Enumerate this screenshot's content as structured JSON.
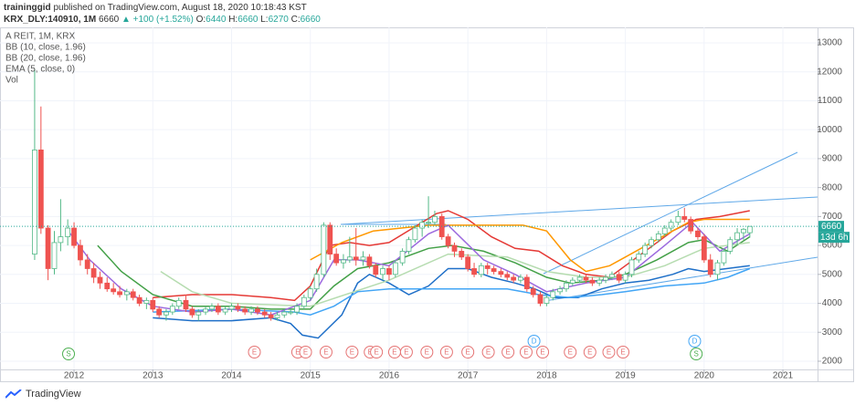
{
  "header": {
    "author": "traininggid",
    "published": "published on TradingView.com, August 18, 2020 10:18:43 KST",
    "symbol": "KRX_DLY:140910, 1M",
    "last": "6660",
    "change": "▲ +100 (+1.52%)",
    "quote": [
      {
        "key": "O:",
        "value": "6440"
      },
      {
        "key": "H:",
        "value": "6660"
      },
      {
        "key": "L:",
        "value": "6270"
      },
      {
        "key": "C:",
        "value": "6660"
      }
    ]
  },
  "footer": {
    "brand": "TradingView"
  },
  "chart_data": {
    "type": "candlestick",
    "title": "A REIT, 1M, KRX",
    "volume_label": "Vol",
    "up_color": "#53b987",
    "down_color": "#ef5350",
    "grid": true,
    "xlim": [
      2011.06,
      2021.44
    ],
    "xticks": [
      2012,
      2013,
      2014,
      2015,
      2016,
      2017,
      2018,
      2019,
      2020,
      2021
    ],
    "ylim": [
      1716,
      13536
    ],
    "yticks": [
      2000,
      3000,
      4000,
      5000,
      6000,
      7000,
      8000,
      9000,
      10000,
      11000,
      12000,
      13000
    ],
    "x": [
      2011.5,
      2011.58,
      2011.67,
      2011.75,
      2011.83,
      2011.92,
      2012,
      2012.08,
      2012.17,
      2012.25,
      2012.33,
      2012.42,
      2012.5,
      2012.58,
      2012.67,
      2012.75,
      2012.83,
      2012.92,
      2013,
      2013.08,
      2013.17,
      2013.25,
      2013.33,
      2013.42,
      2013.5,
      2013.58,
      2013.67,
      2013.75,
      2013.83,
      2013.92,
      2014,
      2014.08,
      2014.17,
      2014.25,
      2014.33,
      2014.42,
      2014.5,
      2014.58,
      2014.67,
      2014.75,
      2014.83,
      2014.92,
      2015,
      2015.08,
      2015.17,
      2015.25,
      2015.33,
      2015.42,
      2015.5,
      2015.58,
      2015.67,
      2015.75,
      2015.83,
      2015.92,
      2016,
      2016.08,
      2016.17,
      2016.25,
      2016.33,
      2016.42,
      2016.5,
      2016.58,
      2016.67,
      2016.75,
      2016.83,
      2016.92,
      2017,
      2017.08,
      2017.17,
      2017.25,
      2017.33,
      2017.42,
      2017.5,
      2017.58,
      2017.67,
      2017.75,
      2017.83,
      2017.92,
      2018,
      2018.08,
      2018.17,
      2018.25,
      2018.33,
      2018.42,
      2018.5,
      2018.58,
      2018.67,
      2018.75,
      2018.83,
      2018.92,
      2019,
      2019.08,
      2019.17,
      2019.25,
      2019.33,
      2019.42,
      2019.5,
      2019.58,
      2019.67,
      2019.75,
      2019.83,
      2019.92,
      2020,
      2020.08,
      2020.17,
      2020.25,
      2020.33,
      2020.42,
      2020.5,
      2020.58
    ],
    "ohlc": [
      [
        5700,
        12100,
        5500,
        9300
      ],
      [
        9300,
        10800,
        6400,
        6600
      ],
      [
        6600,
        6700,
        4800,
        5200
      ],
      [
        5200,
        6500,
        5000,
        6100
      ],
      [
        6100,
        7600,
        5800,
        6300
      ],
      [
        6300,
        6900,
        6000,
        6600
      ],
      [
        6600,
        6800,
        5900,
        6000
      ],
      [
        6000,
        6200,
        5300,
        5500
      ],
      [
        5500,
        5700,
        5000,
        5200
      ],
      [
        5200,
        5400,
        4700,
        4900
      ],
      [
        4900,
        5100,
        4500,
        4700
      ],
      [
        4700,
        4900,
        4400,
        4500
      ],
      [
        4500,
        4700,
        4300,
        4400
      ],
      [
        4400,
        4600,
        4200,
        4300
      ],
      [
        4300,
        4500,
        4100,
        4400
      ],
      [
        4400,
        4500,
        4100,
        4200
      ],
      [
        4200,
        4300,
        3900,
        4000
      ],
      [
        4000,
        4200,
        3800,
        4100
      ],
      [
        4100,
        4200,
        3700,
        3800
      ],
      [
        3800,
        3900,
        3500,
        3600
      ],
      [
        3600,
        3800,
        3400,
        3700
      ],
      [
        3700,
        4000,
        3600,
        3900
      ],
      [
        3900,
        4200,
        3800,
        4100
      ],
      [
        4100,
        4300,
        3700,
        3800
      ],
      [
        3800,
        3900,
        3500,
        3600
      ],
      [
        3600,
        3800,
        3400,
        3700
      ],
      [
        3700,
        3900,
        3600,
        3800
      ],
      [
        3800,
        4000,
        3700,
        3900
      ],
      [
        3900,
        4000,
        3600,
        3700
      ],
      [
        3700,
        3900,
        3600,
        3800
      ],
      [
        3800,
        4000,
        3700,
        3900
      ],
      [
        3900,
        4000,
        3700,
        3800
      ],
      [
        3800,
        3900,
        3600,
        3700
      ],
      [
        3700,
        3900,
        3600,
        3800
      ],
      [
        3800,
        3900,
        3600,
        3700
      ],
      [
        3700,
        3800,
        3500,
        3600
      ],
      [
        3600,
        3700,
        3400,
        3500
      ],
      [
        3500,
        3700,
        3400,
        3600
      ],
      [
        3600,
        3800,
        3500,
        3700
      ],
      [
        3700,
        3800,
        3600,
        3700
      ],
      [
        3700,
        4000,
        3600,
        3900
      ],
      [
        3900,
        4300,
        3800,
        4200
      ],
      [
        4200,
        4600,
        4100,
        4500
      ],
      [
        4500,
        5200,
        4400,
        5000
      ],
      [
        5000,
        6800,
        4900,
        6700
      ],
      [
        6700,
        6800,
        5500,
        5700
      ],
      [
        5700,
        5900,
        5300,
        5400
      ],
      [
        5400,
        5700,
        5200,
        5500
      ],
      [
        5500,
        6300,
        5400,
        5600
      ],
      [
        5600,
        6600,
        5300,
        5500
      ],
      [
        5500,
        5800,
        5300,
        5600
      ],
      [
        5600,
        5700,
        5200,
        5300
      ],
      [
        5300,
        5400,
        4900,
        5000
      ],
      [
        5000,
        5300,
        4800,
        5200
      ],
      [
        5200,
        5300,
        4800,
        5000
      ],
      [
        5000,
        5500,
        4900,
        5400
      ],
      [
        5400,
        5900,
        5300,
        5800
      ],
      [
        5800,
        6300,
        5700,
        6200
      ],
      [
        6200,
        6700,
        6100,
        6600
      ],
      [
        6600,
        6900,
        6300,
        6800
      ],
      [
        6800,
        7700,
        6600,
        6800
      ],
      [
        6800,
        7200,
        6700,
        7000
      ],
      [
        7000,
        7100,
        6200,
        6300
      ],
      [
        6300,
        6400,
        5900,
        6000
      ],
      [
        6000,
        6100,
        5600,
        5800
      ],
      [
        5800,
        5900,
        5500,
        5600
      ],
      [
        5600,
        5700,
        5100,
        5200
      ],
      [
        5200,
        5400,
        4900,
        5000
      ],
      [
        5000,
        5400,
        4900,
        5300
      ],
      [
        5300,
        5400,
        5000,
        5200
      ],
      [
        5200,
        5300,
        5000,
        5100
      ],
      [
        5100,
        5200,
        4900,
        5000
      ],
      [
        5000,
        5100,
        4800,
        4900
      ],
      [
        4900,
        5000,
        4700,
        4800
      ],
      [
        4800,
        5000,
        4700,
        4900
      ],
      [
        4900,
        5000,
        4400,
        4500
      ],
      [
        4500,
        4600,
        4200,
        4300
      ],
      [
        4300,
        4400,
        3900,
        4000
      ],
      [
        4000,
        4300,
        3900,
        4200
      ],
      [
        4200,
        4500,
        4100,
        4400
      ],
      [
        4400,
        4600,
        4300,
        4500
      ],
      [
        4500,
        4800,
        4400,
        4700
      ],
      [
        4700,
        4900,
        4600,
        4800
      ],
      [
        4800,
        5000,
        4700,
        4900
      ],
      [
        4900,
        5000,
        4700,
        4800
      ],
      [
        4800,
        4900,
        4600,
        4700
      ],
      [
        4700,
        4900,
        4600,
        4800
      ],
      [
        4800,
        5000,
        4700,
        4900
      ],
      [
        4900,
        5100,
        4800,
        5000
      ],
      [
        5000,
        5100,
        4700,
        4800
      ],
      [
        4800,
        5100,
        4700,
        5000
      ],
      [
        5000,
        5600,
        4900,
        5500
      ],
      [
        5500,
        5800,
        5400,
        5700
      ],
      [
        5700,
        6100,
        5600,
        6000
      ],
      [
        6000,
        6300,
        5900,
        6200
      ],
      [
        6200,
        6500,
        6100,
        6400
      ],
      [
        6400,
        6700,
        6300,
        6600
      ],
      [
        6600,
        6900,
        6500,
        6800
      ],
      [
        6800,
        7200,
        6700,
        7000
      ],
      [
        7000,
        7300,
        6800,
        6900
      ],
      [
        6900,
        7000,
        6400,
        6500
      ],
      [
        6500,
        6600,
        6200,
        6300
      ],
      [
        6300,
        6400,
        5400,
        5500
      ],
      [
        5500,
        5700,
        4900,
        5000
      ],
      [
        5000,
        5500,
        4800,
        5400
      ],
      [
        5400,
        5900,
        5300,
        5800
      ],
      [
        5800,
        6300,
        5700,
        6200
      ],
      [
        6200,
        6600,
        6000,
        6440
      ],
      [
        6440,
        6600,
        6200,
        6560
      ],
      [
        6440,
        6660,
        6270,
        6660
      ]
    ],
    "indicators": [
      {
        "label": "BB (10, close, 1.96)",
        "lines": [
          {
            "color": "#e53935",
            "x": [
              2013,
              2013.5,
              2014,
              2014.5,
              2014.8,
              2015,
              2015.25,
              2015.5,
              2015.75,
              2016,
              2016.3,
              2016.6,
              2016.75,
              2017,
              2017.3,
              2017.6,
              2017.9,
              2018.2,
              2018.5,
              2018.8,
              2019,
              2019.3,
              2019.6,
              2019.9,
              2020.2,
              2020.58
            ],
            "values": [
              4200,
              4300,
              4300,
              4200,
              4100,
              4600,
              6000,
              6100,
              6000,
              6100,
              6600,
              7100,
              7200,
              6900,
              6300,
              5900,
              5800,
              5300,
              5000,
              4900,
              5300,
              5900,
              6500,
              6900,
              7000,
              7200
            ]
          },
          {
            "color": "#43a047",
            "x": [
              2012.3,
              2012.6,
              2013,
              2013.5,
              2014,
              2014.5,
              2015,
              2015.3,
              2015.6,
              2016,
              2016.5,
              2016.8,
              2017.2,
              2017.6,
              2018,
              2018.3,
              2018.7,
              2019,
              2019.4,
              2019.8,
              2020,
              2020.3,
              2020.58
            ],
            "values": [
              6000,
              5100,
              4300,
              3900,
              3900,
              3800,
              3800,
              4600,
              5200,
              5400,
              5900,
              6000,
              5800,
              5400,
              4900,
              4700,
              4800,
              5000,
              5500,
              6100,
              6200,
              5800,
              6300
            ]
          },
          {
            "color": "#1e6fc8",
            "x": [
              2013,
              2013.5,
              2014,
              2014.5,
              2014.75,
              2014.9,
              2015.1,
              2015.4,
              2015.6,
              2015.75,
              2016,
              2016.25,
              2016.5,
              2016.75,
              2017,
              2017.3,
              2017.6,
              2017.85,
              2018.1,
              2018.4,
              2018.7,
              2019,
              2019.3,
              2019.6,
              2019.8,
              2020,
              2020.58
            ],
            "values": [
              3500,
              3400,
              3400,
              3500,
              3300,
              2900,
              2800,
              3600,
              4700,
              5000,
              4700,
              4300,
              4600,
              5200,
              5200,
              4900,
              4700,
              4500,
              4200,
              4200,
              4500,
              4700,
              4800,
              5000,
              5200,
              5100,
              5300
            ]
          }
        ]
      },
      {
        "label": "BB (20, close, 1.96)",
        "lines": [
          {
            "color": "#ff9800",
            "x": [
              2015,
              2015.4,
              2015.8,
              2016.5,
              2017,
              2017.7,
              2018,
              2018.3,
              2018.5,
              2018.8,
              2019,
              2019.4,
              2019.8,
              2020,
              2020.58
            ],
            "values": [
              5500,
              6100,
              6500,
              6700,
              6700,
              6700,
              6500,
              5500,
              5100,
              5300,
              5600,
              6200,
              6800,
              6900,
              6900
            ]
          },
          {
            "color": "#b6dcb0",
            "x": [
              2013.1,
              2013.5,
              2014,
              2015,
              2016,
              2016.75,
              2017.5,
              2018,
              2018.5,
              2019,
              2019.5,
              2020,
              2020.58
            ],
            "values": [
              5100,
              4400,
              4000,
              3900,
              4800,
              5700,
              5600,
              5100,
              4900,
              4900,
              5300,
              5900,
              6100
            ]
          },
          {
            "color": "#42a5f5",
            "x": [
              2013,
              2014,
              2014.8,
              2015,
              2015.3,
              2015.6,
              2016,
              2016.5,
              2017,
              2017.5,
              2017.9,
              2018.3,
              2018.7,
              2019,
              2019.5,
              2020,
              2020.3,
              2020.58
            ],
            "values": [
              3700,
              3800,
              3700,
              3600,
              3900,
              4400,
              4500,
              4500,
              4500,
              4500,
              4300,
              4200,
              4300,
              4400,
              4600,
              4700,
              4900,
              5200
            ]
          }
        ]
      },
      {
        "label": "EMA (5, close, 0)",
        "lines": [
          {
            "color": "#9c6ade",
            "x": [
              2011.9,
              2012.2,
              2012.6,
              2013,
              2013.5,
              2014,
              2014.5,
              2015,
              2015.3,
              2015.6,
              2016,
              2016.5,
              2016.75,
              2017.2,
              2017.6,
              2018,
              2018.5,
              2019,
              2019.5,
              2019.85,
              2020.2,
              2020.58
            ],
            "values": [
              6600,
              5500,
              4500,
              3900,
              3700,
              3800,
              3600,
              4100,
              5500,
              5500,
              5300,
              6400,
              6700,
              5500,
              5000,
              4400,
              4700,
              4900,
              6000,
              6800,
              5800,
              6400
            ]
          }
        ]
      }
    ],
    "price_tag": {
      "value": 6660,
      "countdown": "13d 6h",
      "color": "#26a69a"
    },
    "event_colors": {
      "E": "#e57373",
      "D": "#42a5f5",
      "S": "#4caf50"
    },
    "events": [
      {
        "x": 2011.93,
        "label": "S"
      },
      {
        "x": 2014.29,
        "label": "E"
      },
      {
        "x": 2014.84,
        "label": "E"
      },
      {
        "x": 2014.94,
        "label": "E"
      },
      {
        "x": 2015.2,
        "label": "E"
      },
      {
        "x": 2015.53,
        "label": "E"
      },
      {
        "x": 2015.76,
        "label": "E"
      },
      {
        "x": 2015.84,
        "label": "E"
      },
      {
        "x": 2016.07,
        "label": "E"
      },
      {
        "x": 2016.22,
        "label": "E"
      },
      {
        "x": 2016.48,
        "label": "E"
      },
      {
        "x": 2016.73,
        "label": "E"
      },
      {
        "x": 2017,
        "label": "E"
      },
      {
        "x": 2017.26,
        "label": "E"
      },
      {
        "x": 2017.51,
        "label": "E"
      },
      {
        "x": 2017.74,
        "label": "E"
      },
      {
        "x": 2017.84,
        "label": "D"
      },
      {
        "x": 2017.95,
        "label": "E"
      },
      {
        "x": 2018.3,
        "label": "E"
      },
      {
        "x": 2018.55,
        "label": "E"
      },
      {
        "x": 2018.79,
        "label": "E"
      },
      {
        "x": 2018.97,
        "label": "E"
      },
      {
        "x": 2019.88,
        "label": "D"
      },
      {
        "x": 2019.9,
        "label": "S"
      }
    ]
  }
}
